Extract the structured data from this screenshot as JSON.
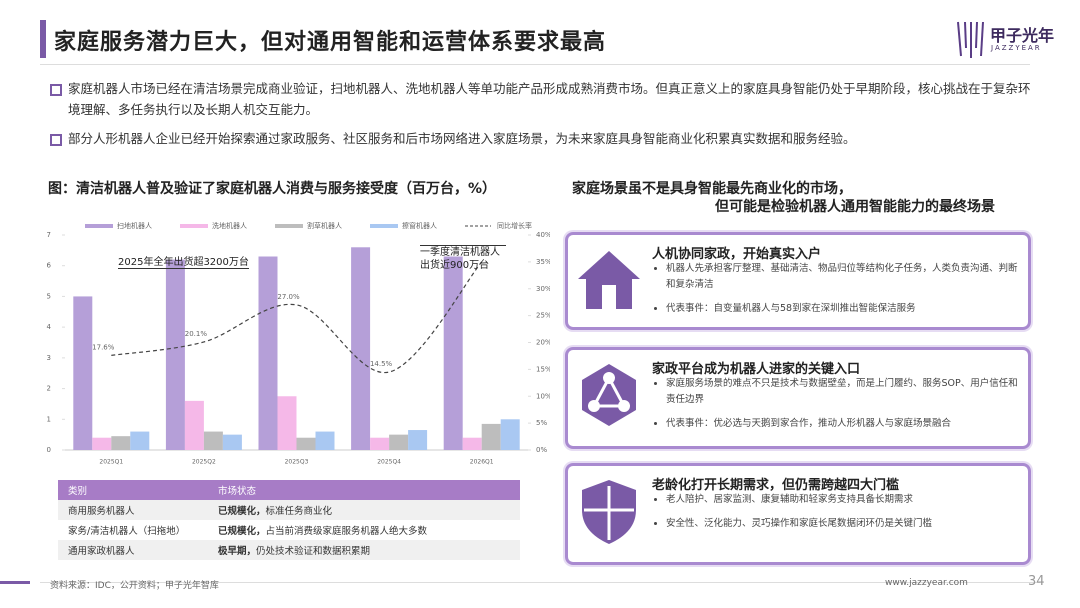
{
  "header": {
    "title": "家庭服务潜力巨大，但对通用智能和运营体系要求最高",
    "logo_cn": "甲子光年",
    "logo_en": "JAZZYEAR"
  },
  "bullets": [
    "家庭机器人市场已经在清洁场景完成商业验证，扫地机器人、洗地机器人等单功能产品形成成熟消费市场。但真正意义上的家庭具身智能仍处于早期阶段，核心挑战在于复杂环境理解、多任务执行以及长期人机交互能力。",
    "部分人形机器人企业已经开始探索通过家政服务、社区服务和后市场网络进入家庭场景，为未来家庭具身智能商业化积累真实数据和服务经验。"
  ],
  "chart_data": {
    "type": "bar",
    "title": "图：清洁机器人普及验证了家庭机器人消费与服务接受度（百万台，%）",
    "categories": [
      "2025Q1",
      "2025Q2",
      "2025Q3",
      "2025Q4",
      "2026Q1"
    ],
    "series": [
      {
        "name": "扫地机器人",
        "color": "#b59fd8",
        "values": [
          5.0,
          6.2,
          6.3,
          6.6,
          6.3
        ]
      },
      {
        "name": "洗地机器人",
        "color": "#f5b8e8",
        "values": [
          0.4,
          1.6,
          1.75,
          0.4,
          0.4
        ]
      },
      {
        "name": "割草机器人",
        "color": "#bdbdbd",
        "values": [
          0.45,
          0.6,
          0.4,
          0.5,
          0.85
        ]
      },
      {
        "name": "擦窗机器人",
        "color": "#a9c8f2",
        "values": [
          0.6,
          0.5,
          0.6,
          0.65,
          1.0
        ]
      },
      {
        "name": "同比增长率",
        "type": "line",
        "axis": "y2",
        "color": "#444444",
        "values": [
          17.6,
          20.1,
          27.0,
          14.5,
          35
        ],
        "value_labels": [
          "17.6%",
          "20.1%",
          "27.0%",
          "14.5%",
          null
        ]
      }
    ],
    "ylim": [
      0,
      7
    ],
    "yticks": [
      0,
      1,
      2,
      3,
      4,
      5,
      6,
      7
    ],
    "y2lim": [
      0,
      40
    ],
    "y2ticks": [
      {
        "value": 0,
        "label": "0%"
      },
      {
        "value": 5,
        "label": "5%"
      },
      {
        "value": 10,
        "label": "10%"
      },
      {
        "value": 15,
        "label": "15%"
      },
      {
        "value": 20,
        "label": "20%"
      },
      {
        "value": 25,
        "label": "25%"
      },
      {
        "value": 30,
        "label": "30%"
      },
      {
        "value": 35,
        "label": "35%"
      },
      {
        "value": 40,
        "label": "40%"
      }
    ],
    "annotations": [
      "2025年全年出货超3200万台",
      "一季度清洁机器人出货近900万台"
    ]
  },
  "table": {
    "header": [
      "类别",
      "市场状态"
    ],
    "rows": [
      {
        "category": "商用服务机器人",
        "status_lead": "已规模化，",
        "status_detail": "标准任务商业化"
      },
      {
        "category": "家务/清洁机器人（扫拖地）",
        "status_lead": "已规模化，",
        "status_detail": "占当前消费级家庭服务机器人绝大多数"
      },
      {
        "category": "通用家政机器人",
        "status_lead": "极早期，",
        "status_detail": "仍处技术验证和数据积累期"
      }
    ]
  },
  "insight": {
    "title_lines": [
      "家庭场景虽不是具身智能最先商业化的市场，",
      "但可能是检验机器人通用智能能力的最终场景"
    ]
  },
  "cards": [
    {
      "title": "人机协同家政，开始真实入户",
      "points": [
        "机器人先承担客厅整理、基础清洁、物品归位等结构化子任务，人类负责沟通、判断和复杂清洁",
        "代表事件：自变量机器人与58到家在深圳推出智能保洁服务"
      ]
    },
    {
      "title": "家政平台成为机器人进家的关键入口",
      "points": [
        "家庭服务场景的难点不只是技术与数据壁垒，而是上门履约、服务SOP、用户信任和责任边界",
        "代表事件：优必选与天鹅到家合作，推动人形机器人与家庭场景融合"
      ]
    },
    {
      "title": "老龄化打开长期需求，但仍需跨越四大门槛",
      "points": [
        "老人陪护、居家监测、康复辅助和轻家务支持具备长期需求",
        "安全性、泛化能力、灵巧操作和家庭长尾数据闭环仍是关键门槛"
      ]
    }
  ],
  "footer": {
    "source": "资料来源：IDC，公开资料；甲子光年智库",
    "url": "www.jazzyear.com",
    "page": "34"
  }
}
